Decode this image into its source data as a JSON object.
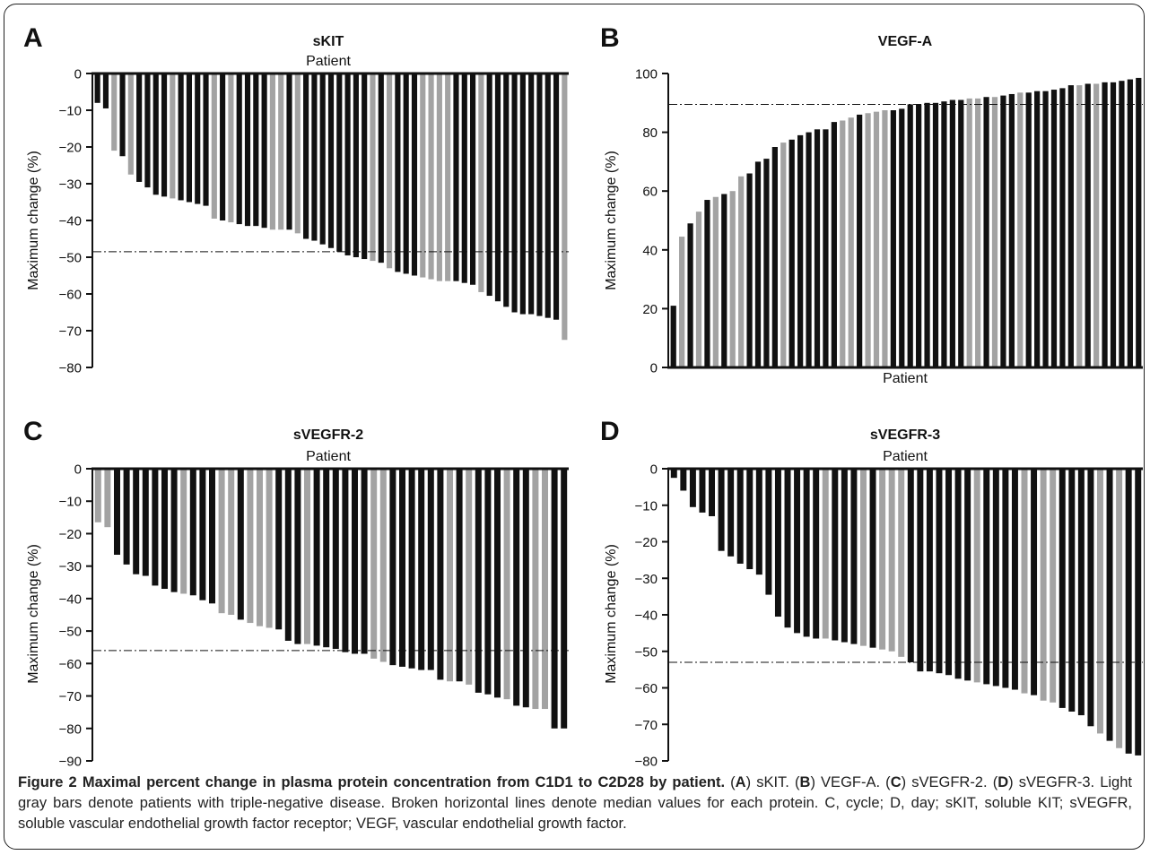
{
  "colors": {
    "tn": "#a3a3a3",
    "other": "#111111",
    "axis": "#111111",
    "median": "#111111"
  },
  "chart_data": [
    {
      "type": "bar",
      "panel": "A",
      "title": "sKIT",
      "xlabel": "Patient",
      "ylabel": "Maximum change (%)",
      "ylim": [
        -80,
        0
      ],
      "yticks": [
        0,
        -10,
        -20,
        -30,
        -40,
        -50,
        -60,
        -70,
        -80
      ],
      "median": -48.5,
      "series": [
        {
          "name": "Light gray bars denote patients with triple-negative disease",
          "color": "tn"
        },
        {
          "color": "other"
        }
      ],
      "values": [
        -8,
        -9.5,
        -21,
        -22.5,
        -27.5,
        -29.5,
        -31,
        -33,
        -33.5,
        -34,
        -34.5,
        -35,
        -35.5,
        -36,
        -39.5,
        -40,
        -40.5,
        -41,
        -41.5,
        -41.5,
        -42,
        -42.5,
        -42.5,
        -42.5,
        -43.5,
        -45,
        -45.5,
        -46.5,
        -47.5,
        -48.5,
        -49.5,
        -50,
        -50.5,
        -51,
        -51.5,
        -53,
        -54,
        -54.5,
        -55,
        -55.5,
        -56,
        -56.5,
        -56.5,
        -56.5,
        -57,
        -57.5,
        -59.5,
        -60.5,
        -62,
        -63.5,
        -65,
        -65.5,
        -65.5,
        -66,
        -66.5,
        -67,
        -72.5
      ],
      "light": [
        0,
        0,
        1,
        0,
        1,
        0,
        0,
        0,
        0,
        1,
        0,
        0,
        0,
        0,
        1,
        0,
        1,
        0,
        0,
        0,
        0,
        1,
        1,
        0,
        1,
        0,
        0,
        0,
        0,
        0,
        0,
        0,
        0,
        1,
        0,
        1,
        0,
        0,
        0,
        1,
        1,
        1,
        1,
        0,
        0,
        0,
        1,
        0,
        0,
        0,
        0,
        0,
        0,
        0,
        0,
        0,
        1
      ]
    },
    {
      "type": "bar",
      "panel": "B",
      "title": "VEGF-A",
      "xlabel": "Patient",
      "ylabel": "Maximum change (%)",
      "ylim": [
        0,
        100
      ],
      "yticks": [
        0,
        20,
        40,
        60,
        80,
        100
      ],
      "median": 89.5,
      "values": [
        21,
        44.5,
        49,
        53,
        57,
        58,
        59,
        60,
        65,
        66,
        70,
        71,
        75,
        76.5,
        77.5,
        79,
        80,
        81,
        81,
        83.5,
        84,
        85,
        86,
        86.5,
        87,
        87.5,
        87.5,
        88,
        89.5,
        89.5,
        90,
        90,
        90.5,
        91,
        91,
        91.5,
        91.5,
        92,
        92,
        92.5,
        93,
        93.5,
        93.5,
        94,
        94,
        94.5,
        95,
        96,
        96,
        96.5,
        96.5,
        97,
        97,
        97.5,
        98,
        98.5
      ],
      "light": [
        0,
        1,
        0,
        1,
        0,
        1,
        0,
        1,
        1,
        0,
        0,
        0,
        0,
        1,
        0,
        0,
        0,
        0,
        0,
        0,
        1,
        1,
        0,
        1,
        1,
        1,
        0,
        0,
        0,
        0,
        0,
        0,
        0,
        0,
        0,
        1,
        1,
        0,
        1,
        0,
        0,
        1,
        0,
        0,
        0,
        0,
        0,
        0,
        1,
        0,
        1,
        0,
        0,
        0,
        0,
        0
      ]
    },
    {
      "type": "bar",
      "panel": "C",
      "title": "sVEGFR-2",
      "xlabel": "Patient",
      "ylabel": "Maximum change (%)",
      "ylim": [
        -90,
        0
      ],
      "yticks": [
        0,
        -10,
        -20,
        -30,
        -40,
        -50,
        -60,
        -70,
        -80,
        -90
      ],
      "median": -56,
      "values": [
        -16.5,
        -18,
        -26.5,
        -29.5,
        -32.5,
        -33,
        -36,
        -37,
        -38,
        -38.5,
        -39,
        -40.5,
        -41.5,
        -44.5,
        -45,
        -46.5,
        -47.5,
        -48.5,
        -49,
        -49.5,
        -53,
        -54,
        -54,
        -54.5,
        -55,
        -55.5,
        -56.5,
        -57,
        -57,
        -58.5,
        -59.5,
        -60.5,
        -61,
        -61.5,
        -62,
        -62,
        -65,
        -65.5,
        -65.5,
        -66.5,
        -69,
        -69.5,
        -70.5,
        -71,
        -73,
        -73.5,
        -74,
        -74,
        -80,
        -80
      ],
      "light": [
        1,
        1,
        0,
        0,
        0,
        0,
        0,
        0,
        0,
        1,
        0,
        0,
        0,
        1,
        1,
        0,
        1,
        1,
        1,
        0,
        0,
        0,
        1,
        0,
        0,
        0,
        0,
        0,
        0,
        1,
        1,
        0,
        0,
        0,
        0,
        0,
        0,
        1,
        0,
        1,
        0,
        0,
        0,
        1,
        0,
        0,
        1,
        1,
        0,
        0
      ]
    },
    {
      "type": "bar",
      "panel": "D",
      "title": "sVEGFR-3",
      "xlabel": "Patient",
      "ylabel": "Maximum change (%)",
      "ylim": [
        -80,
        0
      ],
      "yticks": [
        0,
        -10,
        -20,
        -30,
        -40,
        -50,
        -60,
        -70,
        -80
      ],
      "median": -53,
      "values": [
        -2.5,
        -6,
        -10.5,
        -12,
        -13,
        -22.5,
        -24,
        -26,
        -27.5,
        -29,
        -34.5,
        -40.5,
        -43.5,
        -45,
        -46,
        -46.5,
        -46.5,
        -47,
        -47.5,
        -48,
        -48.5,
        -49,
        -49.5,
        -50,
        -51.5,
        -53,
        -55.5,
        -55.5,
        -56,
        -56.5,
        -57.5,
        -58,
        -58.5,
        -59,
        -59.5,
        -60,
        -60.5,
        -61.5,
        -62,
        -63.5,
        -64,
        -65.5,
        -66.5,
        -67.5,
        -70.5,
        -72.5,
        -74.5,
        -76.5,
        -78,
        -78.5
      ],
      "light": [
        0,
        0,
        0,
        0,
        0,
        0,
        0,
        0,
        0,
        0,
        0,
        0,
        0,
        0,
        0,
        0,
        1,
        0,
        0,
        0,
        1,
        0,
        1,
        1,
        1,
        0,
        0,
        0,
        0,
        0,
        0,
        0,
        1,
        0,
        0,
        0,
        0,
        1,
        0,
        1,
        1,
        0,
        0,
        0,
        0,
        1,
        0,
        1,
        0,
        0
      ]
    }
  ],
  "caption": {
    "lead": "Figure 2 Maximal percent change in plasma protein concentration from C1D1 to C2D28 by patient.",
    "parts": [
      {
        "t": " ("
      },
      {
        "t": "A",
        "b": true
      },
      {
        "t": ") sKIT. ("
      },
      {
        "t": "B",
        "b": true
      },
      {
        "t": ") VEGF-A. ("
      },
      {
        "t": "C",
        "b": true
      },
      {
        "t": ") sVEGFR-2. ("
      },
      {
        "t": "D",
        "b": true
      },
      {
        "t": ") sVEGFR-3. Light gray bars denote patients with triple-negative disease. Broken horizontal lines denote median values for each protein. C, cycle; D, day; sKIT, soluble KIT; sVEGFR, soluble vascular endothelial growth factor receptor; VEGF, vascular endothelial growth factor."
      }
    ]
  }
}
